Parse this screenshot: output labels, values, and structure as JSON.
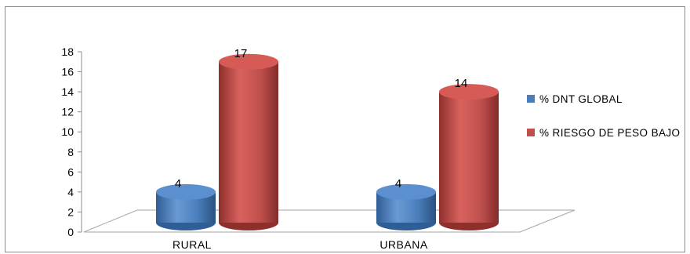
{
  "chart_data": {
    "type": "bar",
    "style": "3d-cylinder",
    "categories": [
      "RURAL",
      "URBANA"
    ],
    "series": [
      {
        "name": "% DNT GLOBAL",
        "values": [
          4,
          4
        ],
        "color": "#4a7ebb"
      },
      {
        "name": "% RIESGO DE PESO BAJO",
        "values": [
          17,
          14
        ],
        "color": "#c0504d"
      }
    ],
    "ylim": [
      0,
      18
    ],
    "yticks": [
      "0",
      "2",
      "4",
      "6",
      "8",
      "10",
      "12",
      "14",
      "16",
      "18"
    ],
    "data_labels": [
      [
        "4",
        "4"
      ],
      [
        "17",
        "14"
      ]
    ],
    "legend_position": "right",
    "grid": false
  }
}
